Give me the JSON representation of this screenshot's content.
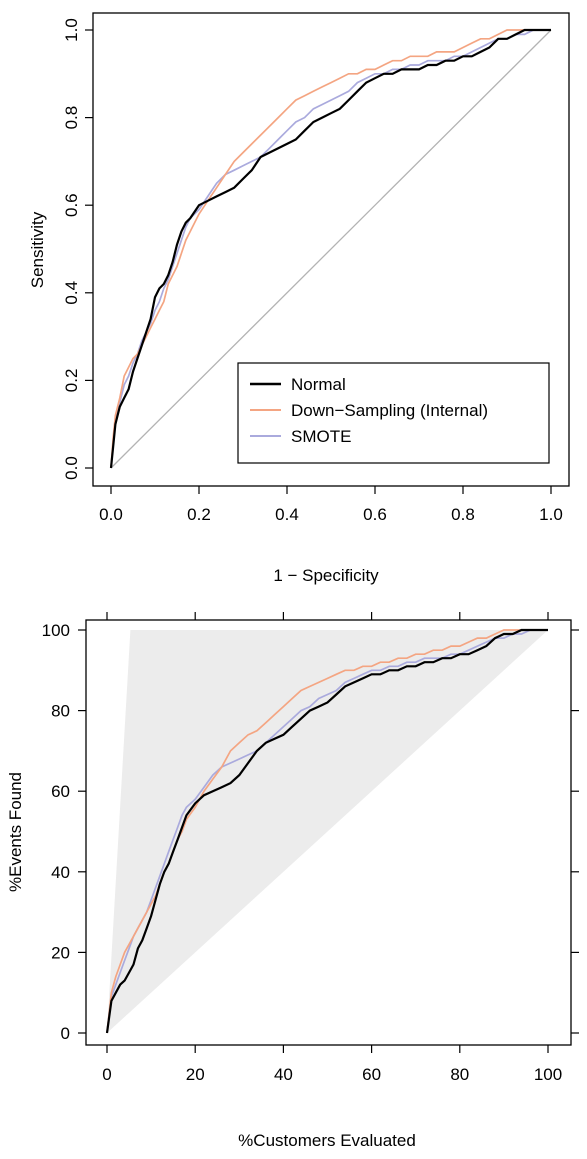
{
  "chart_data": [
    {
      "type": "line",
      "title": "",
      "xlabel": "1 − Specificity",
      "ylabel": "Sensitivity",
      "xlim": [
        0,
        1
      ],
      "ylim": [
        0,
        1
      ],
      "xticks": [
        "0.0",
        "0.2",
        "0.4",
        "0.6",
        "0.8",
        "1.0"
      ],
      "yticks": [
        "0.0",
        "0.2",
        "0.4",
        "0.6",
        "0.8",
        "1.0"
      ],
      "grid": false,
      "legend_position": "bottom-right",
      "reference_line": {
        "x": [
          0,
          1
        ],
        "y": [
          0,
          1
        ],
        "color": "#b3b3b3"
      },
      "series": [
        {
          "name": "Normal",
          "color": "#000000",
          "x": [
            0,
            0.005,
            0.01,
            0.015,
            0.02,
            0.03,
            0.04,
            0.05,
            0.06,
            0.07,
            0.08,
            0.09,
            0.1,
            0.11,
            0.12,
            0.13,
            0.14,
            0.15,
            0.16,
            0.17,
            0.18,
            0.2,
            0.22,
            0.24,
            0.26,
            0.28,
            0.3,
            0.32,
            0.34,
            0.36,
            0.38,
            0.4,
            0.42,
            0.44,
            0.46,
            0.48,
            0.5,
            0.52,
            0.54,
            0.56,
            0.58,
            0.6,
            0.62,
            0.64,
            0.66,
            0.68,
            0.7,
            0.72,
            0.74,
            0.76,
            0.78,
            0.8,
            0.82,
            0.84,
            0.86,
            0.88,
            0.9,
            0.92,
            0.94,
            0.96,
            0.98,
            1.0
          ],
          "y": [
            0,
            0.05,
            0.1,
            0.12,
            0.14,
            0.16,
            0.18,
            0.22,
            0.25,
            0.28,
            0.31,
            0.34,
            0.39,
            0.41,
            0.42,
            0.44,
            0.47,
            0.51,
            0.54,
            0.56,
            0.57,
            0.6,
            0.61,
            0.62,
            0.63,
            0.64,
            0.66,
            0.68,
            0.71,
            0.72,
            0.73,
            0.74,
            0.75,
            0.77,
            0.79,
            0.8,
            0.81,
            0.82,
            0.84,
            0.86,
            0.88,
            0.89,
            0.9,
            0.9,
            0.91,
            0.91,
            0.91,
            0.92,
            0.92,
            0.93,
            0.93,
            0.94,
            0.94,
            0.95,
            0.96,
            0.98,
            0.98,
            0.99,
            1.0,
            1.0,
            1.0,
            1.0
          ]
        },
        {
          "name": "Down−Sampling (Internal)",
          "color": "#f4a582",
          "x": [
            0,
            0.005,
            0.01,
            0.02,
            0.03,
            0.04,
            0.05,
            0.06,
            0.07,
            0.08,
            0.09,
            0.1,
            0.11,
            0.12,
            0.13,
            0.14,
            0.15,
            0.16,
            0.17,
            0.18,
            0.2,
            0.22,
            0.24,
            0.26,
            0.28,
            0.3,
            0.32,
            0.34,
            0.36,
            0.38,
            0.4,
            0.42,
            0.44,
            0.46,
            0.48,
            0.5,
            0.52,
            0.54,
            0.56,
            0.58,
            0.6,
            0.62,
            0.64,
            0.66,
            0.68,
            0.7,
            0.72,
            0.74,
            0.76,
            0.78,
            0.8,
            0.82,
            0.84,
            0.86,
            0.88,
            0.9,
            0.92,
            0.94,
            0.96,
            0.98,
            1.0
          ],
          "y": [
            0,
            0.07,
            0.12,
            0.16,
            0.21,
            0.23,
            0.25,
            0.26,
            0.28,
            0.3,
            0.32,
            0.34,
            0.36,
            0.38,
            0.42,
            0.44,
            0.46,
            0.49,
            0.52,
            0.54,
            0.58,
            0.61,
            0.64,
            0.67,
            0.7,
            0.72,
            0.74,
            0.76,
            0.78,
            0.8,
            0.82,
            0.84,
            0.85,
            0.86,
            0.87,
            0.88,
            0.89,
            0.9,
            0.9,
            0.91,
            0.91,
            0.92,
            0.93,
            0.93,
            0.94,
            0.94,
            0.94,
            0.95,
            0.95,
            0.95,
            0.96,
            0.97,
            0.98,
            0.98,
            0.99,
            1.0,
            1.0,
            1.0,
            1.0,
            1.0,
            1.0
          ]
        },
        {
          "name": "SMOTE",
          "color": "#aaaadd",
          "x": [
            0,
            0.005,
            0.01,
            0.02,
            0.03,
            0.04,
            0.05,
            0.06,
            0.07,
            0.08,
            0.09,
            0.1,
            0.11,
            0.12,
            0.13,
            0.14,
            0.15,
            0.16,
            0.17,
            0.18,
            0.2,
            0.22,
            0.24,
            0.26,
            0.28,
            0.3,
            0.32,
            0.34,
            0.36,
            0.38,
            0.4,
            0.42,
            0.44,
            0.46,
            0.48,
            0.5,
            0.52,
            0.54,
            0.56,
            0.58,
            0.6,
            0.62,
            0.64,
            0.66,
            0.68,
            0.7,
            0.72,
            0.74,
            0.76,
            0.78,
            0.8,
            0.82,
            0.84,
            0.86,
            0.88,
            0.9,
            0.92,
            0.94,
            0.96,
            0.98,
            1.0
          ],
          "y": [
            0,
            0.06,
            0.11,
            0.15,
            0.19,
            0.21,
            0.24,
            0.26,
            0.29,
            0.31,
            0.33,
            0.36,
            0.38,
            0.41,
            0.43,
            0.46,
            0.49,
            0.52,
            0.55,
            0.57,
            0.59,
            0.62,
            0.65,
            0.67,
            0.68,
            0.69,
            0.7,
            0.71,
            0.73,
            0.75,
            0.77,
            0.79,
            0.8,
            0.82,
            0.83,
            0.84,
            0.85,
            0.86,
            0.88,
            0.89,
            0.9,
            0.9,
            0.91,
            0.91,
            0.92,
            0.92,
            0.93,
            0.93,
            0.93,
            0.94,
            0.94,
            0.95,
            0.96,
            0.97,
            0.98,
            0.98,
            0.99,
            0.99,
            1.0,
            1.0,
            1.0
          ]
        }
      ]
    },
    {
      "type": "line",
      "title": "",
      "xlabel": "%Customers Evaluated",
      "ylabel": "%Events Found",
      "xlim": [
        0,
        100
      ],
      "ylim": [
        0,
        100
      ],
      "xticks": [
        "0",
        "20",
        "40",
        "60",
        "80",
        "100"
      ],
      "yticks": [
        "0",
        "20",
        "40",
        "60",
        "80",
        "100"
      ],
      "grid": false,
      "shaded_region": {
        "color": "#ececec",
        "x": [
          0,
          5.3,
          100
        ],
        "y": [
          0,
          100,
          100
        ],
        "x_lower": [
          0,
          100
        ],
        "y_lower": [
          0,
          100
        ]
      },
      "series": [
        {
          "name": "Normal",
          "color": "#000000",
          "x": [
            0,
            0.5,
            1,
            2,
            3,
            4,
            5,
            6,
            7,
            8,
            9,
            10,
            11,
            12,
            13,
            14,
            15,
            16,
            17,
            18,
            20,
            22,
            24,
            26,
            28,
            30,
            32,
            34,
            36,
            38,
            40,
            42,
            44,
            46,
            48,
            50,
            52,
            54,
            56,
            58,
            60,
            62,
            64,
            66,
            68,
            70,
            72,
            74,
            76,
            78,
            80,
            82,
            84,
            86,
            88,
            90,
            92,
            94,
            96,
            98,
            100
          ],
          "y": [
            0,
            4,
            8,
            10,
            12,
            13,
            15,
            17,
            21,
            23,
            26,
            29,
            33,
            37,
            40,
            42,
            45,
            48,
            51,
            54,
            57,
            59,
            60,
            61,
            62,
            64,
            67,
            70,
            72,
            73,
            74,
            76,
            78,
            80,
            81,
            82,
            84,
            86,
            87,
            88,
            89,
            89,
            90,
            90,
            91,
            91,
            92,
            92,
            93,
            93,
            94,
            94,
            95,
            96,
            98,
            99,
            99,
            100,
            100,
            100,
            100
          ]
        },
        {
          "name": "Down−Sampling (Internal)",
          "color": "#f4a582",
          "x": [
            0,
            0.5,
            1,
            2,
            3,
            4,
            5,
            6,
            7,
            8,
            9,
            10,
            11,
            12,
            13,
            14,
            15,
            16,
            17,
            18,
            20,
            22,
            24,
            26,
            28,
            30,
            32,
            34,
            36,
            38,
            40,
            42,
            44,
            46,
            48,
            50,
            52,
            54,
            56,
            58,
            60,
            62,
            64,
            66,
            68,
            70,
            72,
            74,
            76,
            78,
            80,
            82,
            84,
            86,
            88,
            90,
            92,
            94,
            96,
            98,
            100
          ],
          "y": [
            0,
            5,
            10,
            14,
            17,
            20,
            22,
            24,
            26,
            28,
            30,
            32,
            34,
            37,
            40,
            42,
            45,
            48,
            50,
            53,
            56,
            60,
            63,
            66,
            70,
            72,
            74,
            75,
            77,
            79,
            81,
            83,
            85,
            86,
            87,
            88,
            89,
            90,
            90,
            91,
            91,
            92,
            92,
            93,
            93,
            94,
            94,
            95,
            95,
            96,
            96,
            97,
            98,
            98,
            99,
            100,
            100,
            100,
            100,
            100,
            100
          ]
        },
        {
          "name": "SMOTE",
          "color": "#aaaadd",
          "x": [
            0,
            0.5,
            1,
            2,
            3,
            4,
            5,
            6,
            7,
            8,
            9,
            10,
            11,
            12,
            13,
            14,
            15,
            16,
            17,
            18,
            20,
            22,
            24,
            26,
            28,
            30,
            32,
            34,
            36,
            38,
            40,
            42,
            44,
            46,
            48,
            50,
            52,
            54,
            56,
            58,
            60,
            62,
            64,
            66,
            68,
            70,
            72,
            74,
            76,
            78,
            80,
            82,
            84,
            86,
            88,
            90,
            92,
            94,
            96,
            98,
            100
          ],
          "y": [
            0,
            5,
            9,
            12,
            15,
            18,
            21,
            24,
            26,
            28,
            30,
            33,
            36,
            39,
            42,
            45,
            48,
            51,
            54,
            56,
            58,
            61,
            64,
            66,
            67,
            68,
            69,
            70,
            72,
            74,
            76,
            78,
            80,
            81,
            83,
            84,
            85,
            87,
            88,
            89,
            90,
            90,
            91,
            91,
            92,
            92,
            93,
            93,
            93,
            94,
            94,
            95,
            96,
            97,
            98,
            98,
            99,
            99,
            100,
            100,
            100
          ]
        }
      ]
    }
  ]
}
